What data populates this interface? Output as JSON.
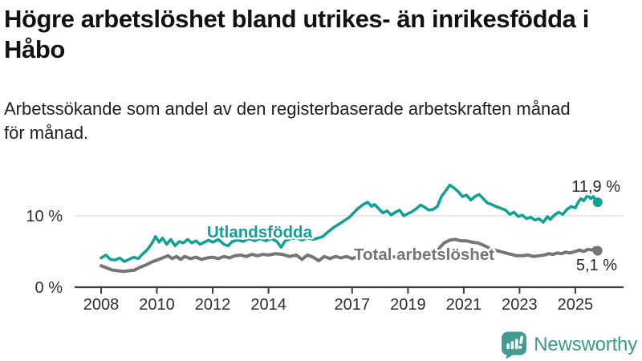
{
  "title": "Högre arbetslöshet bland utrikes- än inrikesfödda i Håbo",
  "title_lines": [
    "Högre arbetslöshet bland utrikes- än inrikesfödda i",
    "Håbo"
  ],
  "subtitle": "Arbetssökande som andel av den registerbaserade arbetskraften månad för månad.",
  "subtitle_lines": [
    "Arbetssökande som andel av den registerbaserade arbetskraften månad",
    "för månad."
  ],
  "footer": {
    "brand": "Newsworthy",
    "logo_icon": "bar-chart-speech-bubble-icon",
    "brand_color": "#3C998E",
    "icon_color": "#429C92"
  },
  "colors": {
    "series_utlandsfodda": "#0FA294",
    "series_total": "#757575",
    "axis": "#3d3d3d",
    "gridline": "#d9d9d9",
    "tick_text": "#2e2e2e",
    "end_label_text": "#262626"
  },
  "chart_data": {
    "type": "line",
    "title": "",
    "xlabel": "",
    "ylabel": "",
    "xlim": [
      2007.8,
      2026.2
    ],
    "ylim": [
      0,
      16.5
    ],
    "grid": "horizontal-10-only",
    "legend_position": "inline-labels-on-lines",
    "x_ticks": [
      {
        "year": 2008,
        "label": "2008"
      },
      {
        "year": 2010,
        "label": "2010"
      },
      {
        "year": 2012,
        "label": "2012"
      },
      {
        "year": 2014,
        "label": "2014"
      },
      {
        "year": 2017,
        "label": "2017"
      },
      {
        "year": 2019,
        "label": "2019"
      },
      {
        "year": 2021,
        "label": "2021"
      },
      {
        "year": 2023,
        "label": "2023"
      },
      {
        "year": 2025,
        "label": "2025"
      }
    ],
    "y_ticks": [
      {
        "value": 0,
        "label": "0 %"
      },
      {
        "value": 10,
        "label": "10 %"
      }
    ],
    "series": [
      {
        "name": "Utlandsfödda",
        "slug": "utlandsfodda",
        "color": "#0FA294",
        "end_label": "11,9 %",
        "end_value": 11.9,
        "points": [
          [
            2008.0,
            4.1
          ],
          [
            2008.17,
            4.5
          ],
          [
            2008.33,
            3.9
          ],
          [
            2008.5,
            3.8
          ],
          [
            2008.67,
            4.1
          ],
          [
            2008.83,
            3.6
          ],
          [
            2009.0,
            3.9
          ],
          [
            2009.17,
            4.2
          ],
          [
            2009.33,
            4.0
          ],
          [
            2009.5,
            4.7
          ],
          [
            2009.67,
            5.3
          ],
          [
            2009.83,
            6.2
          ],
          [
            2009.95,
            7.1
          ],
          [
            2010.08,
            6.3
          ],
          [
            2010.2,
            6.9
          ],
          [
            2010.35,
            6.0
          ],
          [
            2010.5,
            6.7
          ],
          [
            2010.65,
            5.8
          ],
          [
            2010.8,
            6.4
          ],
          [
            2010.95,
            6.2
          ],
          [
            2011.1,
            6.7
          ],
          [
            2011.25,
            6.2
          ],
          [
            2011.4,
            6.5
          ],
          [
            2011.55,
            6.0
          ],
          [
            2011.7,
            6.3
          ],
          [
            2011.85,
            6.6
          ],
          [
            2012.0,
            6.3
          ],
          [
            2012.2,
            6.7
          ],
          [
            2012.4,
            6.0
          ],
          [
            2012.55,
            5.8
          ],
          [
            2012.7,
            6.4
          ],
          [
            2012.9,
            6.6
          ],
          [
            2013.1,
            6.4
          ],
          [
            2013.3,
            6.8
          ],
          [
            2013.5,
            6.5
          ],
          [
            2013.7,
            6.8
          ],
          [
            2013.9,
            6.5
          ],
          [
            2014.1,
            6.8
          ],
          [
            2014.3,
            6.4
          ],
          [
            2014.45,
            5.6
          ],
          [
            2014.6,
            6.5
          ],
          [
            2014.8,
            6.8
          ],
          [
            2015.0,
            6.9
          ],
          [
            2015.2,
            6.6
          ],
          [
            2015.4,
            6.9
          ],
          [
            2015.6,
            6.7
          ],
          [
            2015.8,
            6.9
          ],
          [
            2015.95,
            7.1
          ],
          [
            2016.15,
            7.8
          ],
          [
            2016.35,
            8.4
          ],
          [
            2016.55,
            8.9
          ],
          [
            2016.75,
            9.4
          ],
          [
            2016.9,
            9.8
          ],
          [
            2017.05,
            10.4
          ],
          [
            2017.2,
            11.0
          ],
          [
            2017.4,
            11.6
          ],
          [
            2017.55,
            11.9
          ],
          [
            2017.7,
            11.3
          ],
          [
            2017.8,
            11.6
          ],
          [
            2017.95,
            11.0
          ],
          [
            2018.1,
            10.4
          ],
          [
            2018.25,
            10.7
          ],
          [
            2018.4,
            10.1
          ],
          [
            2018.55,
            10.5
          ],
          [
            2018.7,
            10.8
          ],
          [
            2018.85,
            10.0
          ],
          [
            2019.0,
            10.3
          ],
          [
            2019.15,
            10.6
          ],
          [
            2019.3,
            11.0
          ],
          [
            2019.45,
            11.5
          ],
          [
            2019.6,
            11.2
          ],
          [
            2019.75,
            10.8
          ],
          [
            2019.9,
            10.9
          ],
          [
            2020.05,
            11.3
          ],
          [
            2020.2,
            12.7
          ],
          [
            2020.35,
            13.5
          ],
          [
            2020.5,
            14.3
          ],
          [
            2020.65,
            13.9
          ],
          [
            2020.8,
            13.4
          ],
          [
            2020.95,
            12.7
          ],
          [
            2021.1,
            12.9
          ],
          [
            2021.25,
            12.2
          ],
          [
            2021.4,
            12.7
          ],
          [
            2021.55,
            13.0
          ],
          [
            2021.7,
            12.4
          ],
          [
            2021.85,
            11.8
          ],
          [
            2022.0,
            11.6
          ],
          [
            2022.15,
            11.3
          ],
          [
            2022.3,
            11.1
          ],
          [
            2022.5,
            10.8
          ],
          [
            2022.65,
            10.2
          ],
          [
            2022.8,
            10.5
          ],
          [
            2022.95,
            9.9
          ],
          [
            2023.1,
            10.1
          ],
          [
            2023.25,
            9.6
          ],
          [
            2023.4,
            9.8
          ],
          [
            2023.55,
            9.4
          ],
          [
            2023.7,
            9.6
          ],
          [
            2023.85,
            9.1
          ],
          [
            2024.0,
            9.9
          ],
          [
            2024.1,
            9.5
          ],
          [
            2024.25,
            10.1
          ],
          [
            2024.4,
            10.5
          ],
          [
            2024.55,
            10.2
          ],
          [
            2024.7,
            10.9
          ],
          [
            2024.85,
            11.3
          ],
          [
            2025.0,
            11.1
          ],
          [
            2025.1,
            11.9
          ],
          [
            2025.2,
            12.4
          ],
          [
            2025.3,
            12.1
          ],
          [
            2025.45,
            12.9
          ],
          [
            2025.55,
            12.4
          ],
          [
            2025.65,
            12.7
          ],
          [
            2025.75,
            11.9
          ],
          [
            2025.8,
            11.9
          ]
        ]
      },
      {
        "name": "Total arbetslöshet",
        "slug": "total-arbetsloshet",
        "color": "#757575",
        "end_label": "5,1 %",
        "end_value": 5.1,
        "points": [
          [
            2008.0,
            3.0
          ],
          [
            2008.2,
            2.7
          ],
          [
            2008.4,
            2.4
          ],
          [
            2008.6,
            2.3
          ],
          [
            2008.8,
            2.2
          ],
          [
            2009.0,
            2.3
          ],
          [
            2009.2,
            2.4
          ],
          [
            2009.4,
            2.8
          ],
          [
            2009.6,
            3.1
          ],
          [
            2009.8,
            3.5
          ],
          [
            2010.0,
            3.8
          ],
          [
            2010.2,
            4.1
          ],
          [
            2010.4,
            4.4
          ],
          [
            2010.55,
            4.0
          ],
          [
            2010.7,
            4.3
          ],
          [
            2010.85,
            3.9
          ],
          [
            2011.0,
            4.3
          ],
          [
            2011.2,
            4.0
          ],
          [
            2011.4,
            4.2
          ],
          [
            2011.6,
            3.9
          ],
          [
            2011.8,
            4.1
          ],
          [
            2012.0,
            4.2
          ],
          [
            2012.2,
            4.0
          ],
          [
            2012.4,
            4.3
          ],
          [
            2012.6,
            4.1
          ],
          [
            2012.8,
            4.4
          ],
          [
            2013.0,
            4.5
          ],
          [
            2013.2,
            4.3
          ],
          [
            2013.4,
            4.6
          ],
          [
            2013.6,
            4.4
          ],
          [
            2013.8,
            4.6
          ],
          [
            2014.0,
            4.5
          ],
          [
            2014.25,
            4.7
          ],
          [
            2014.5,
            4.6
          ],
          [
            2014.75,
            4.3
          ],
          [
            2015.0,
            4.5
          ],
          [
            2015.2,
            3.9
          ],
          [
            2015.4,
            4.5
          ],
          [
            2015.6,
            4.2
          ],
          [
            2015.8,
            3.7
          ],
          [
            2016.0,
            4.3
          ],
          [
            2016.2,
            4.0
          ],
          [
            2016.4,
            4.3
          ],
          [
            2016.6,
            4.1
          ],
          [
            2016.8,
            4.3
          ],
          [
            2017.0,
            4.0
          ],
          [
            2017.2,
            4.3
          ],
          [
            2017.4,
            4.1
          ],
          [
            2017.6,
            4.4
          ],
          [
            2017.8,
            4.2
          ],
          [
            2018.0,
            4.4
          ],
          [
            2018.2,
            4.1
          ],
          [
            2018.4,
            4.3
          ],
          [
            2018.6,
            4.2
          ],
          [
            2018.8,
            4.4
          ],
          [
            2019.0,
            4.2
          ],
          [
            2019.2,
            4.4
          ],
          [
            2019.4,
            4.3
          ],
          [
            2019.6,
            4.5
          ],
          [
            2019.8,
            4.6
          ],
          [
            2020.0,
            4.8
          ],
          [
            2020.15,
            5.6
          ],
          [
            2020.3,
            6.2
          ],
          [
            2020.5,
            6.6
          ],
          [
            2020.7,
            6.7
          ],
          [
            2020.9,
            6.5
          ],
          [
            2021.1,
            6.5
          ],
          [
            2021.3,
            6.3
          ],
          [
            2021.5,
            6.2
          ],
          [
            2021.7,
            5.9
          ],
          [
            2021.9,
            5.5
          ],
          [
            2022.1,
            5.2
          ],
          [
            2022.3,
            5.0
          ],
          [
            2022.5,
            4.8
          ],
          [
            2022.7,
            4.6
          ],
          [
            2022.9,
            4.4
          ],
          [
            2023.1,
            4.4
          ],
          [
            2023.3,
            4.5
          ],
          [
            2023.5,
            4.3
          ],
          [
            2023.7,
            4.4
          ],
          [
            2023.9,
            4.5
          ],
          [
            2024.05,
            4.7
          ],
          [
            2024.2,
            4.6
          ],
          [
            2024.35,
            4.8
          ],
          [
            2024.5,
            4.7
          ],
          [
            2024.65,
            4.9
          ],
          [
            2024.8,
            4.8
          ],
          [
            2025.0,
            5.0
          ],
          [
            2025.15,
            5.2
          ],
          [
            2025.3,
            5.0
          ],
          [
            2025.45,
            5.3
          ],
          [
            2025.6,
            5.2
          ],
          [
            2025.7,
            5.5
          ],
          [
            2025.8,
            5.1
          ]
        ]
      }
    ]
  }
}
